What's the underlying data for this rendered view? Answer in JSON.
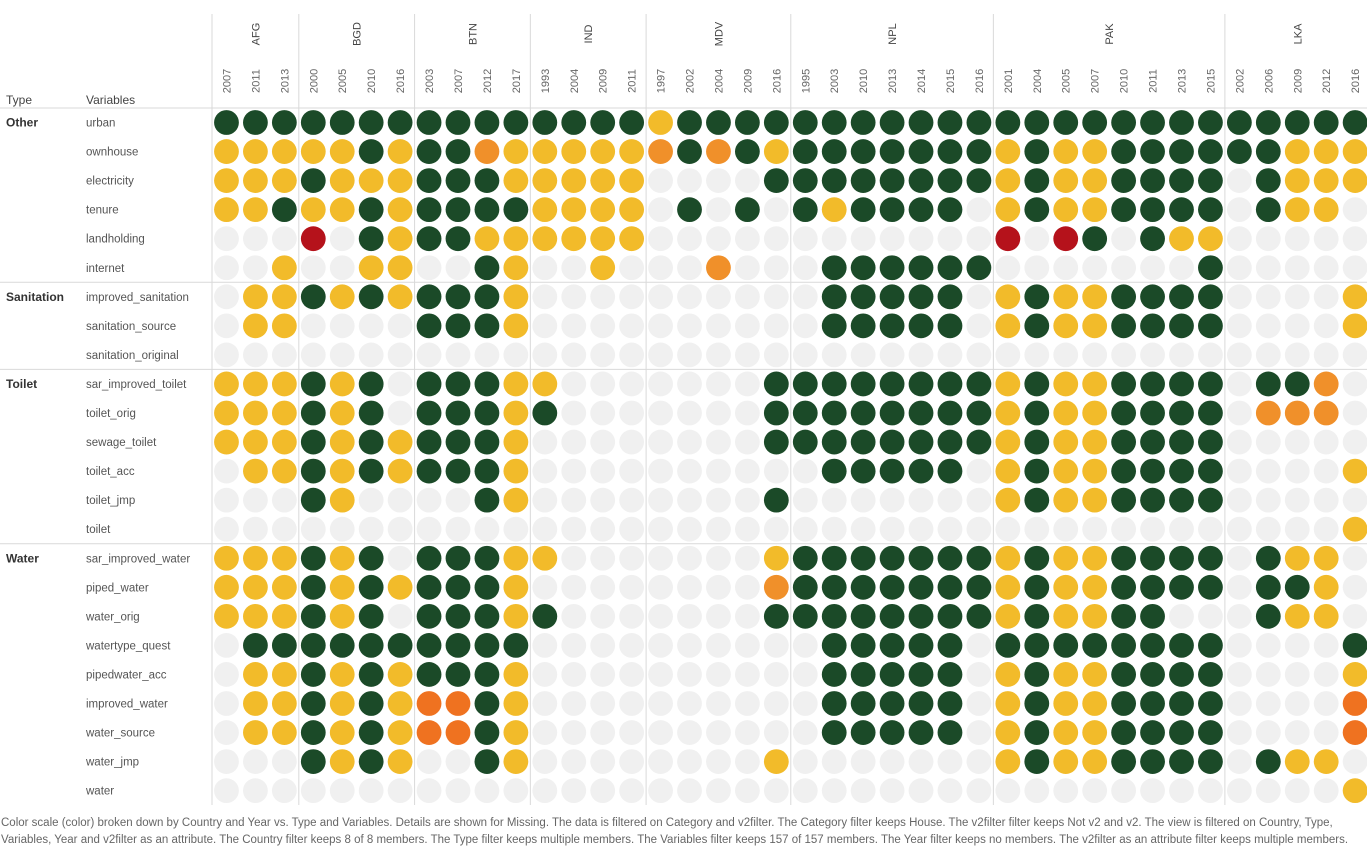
{
  "header": {
    "type_label": "Type",
    "variables_label": "Variables"
  },
  "caption": "Color scale (color) broken down by Country and Year vs. Type and Variables.  Details are shown for Missing. The data is filtered on Category and v2filter. The Category filter keeps House. The v2filter filter keeps Not v2 and v2. The view is filtered on Country, Type, Variables, Year and v2filter as an attribute. The Country filter keeps 8 of 8 members. The Type filter keeps multiple members. The Variables filter keeps 157 of 157 members. The Year filter keeps no members. The v2filter as an attribute filter keeps multiple members.",
  "colors": {
    "G": "#1b4a28",
    "Y": "#f2bb2a",
    "O": "#f0902a",
    "R": "#ef7220",
    "D": "#b5121b",
    "E": "#f0f0f0",
    "grid": "#d9d9d9",
    "text": "#555555"
  },
  "chart_data": {
    "type": "heatmap",
    "legend": {
      "G": "dark green",
      "Y": "yellow",
      "O": "light orange",
      "R": "orange",
      "D": "dark red",
      "E": "empty"
    },
    "countries": [
      {
        "name": "AFG",
        "years": [
          "2007",
          "2011",
          "2013"
        ]
      },
      {
        "name": "BGD",
        "years": [
          "2000",
          "2005",
          "2010",
          "2016"
        ]
      },
      {
        "name": "BTN",
        "years": [
          "2003",
          "2007",
          "2012",
          "2017"
        ]
      },
      {
        "name": "IND",
        "years": [
          "1993",
          "2004",
          "2009",
          "2011"
        ]
      },
      {
        "name": "MDV",
        "years": [
          "1997",
          "2002",
          "2004",
          "2009",
          "2016"
        ]
      },
      {
        "name": "NPL",
        "years": [
          "1995",
          "2003",
          "2010",
          "2013",
          "2014",
          "2015",
          "2016"
        ]
      },
      {
        "name": "PAK",
        "years": [
          "2001",
          "2004",
          "2005",
          "2007",
          "2010",
          "2011",
          "2013",
          "2015"
        ]
      },
      {
        "name": "LKA",
        "years": [
          "2002",
          "2006",
          "2009",
          "2012",
          "2016"
        ]
      }
    ],
    "groups": [
      {
        "type": "Other",
        "rows": [
          {
            "var": "urban",
            "cells": "GGG GGGG GGGG GGGG YGGGG GGGGGGG GGGGGGGG GGGGG"
          },
          {
            "var": "ownhouse",
            "cells": "YYY YYGY GGOY YYYY OGOGY GGGGGGG YGYYGGGG GGYYY"
          },
          {
            "var": "electricity",
            "cells": "YYY GYYY GGGY YYYY EEEEG GGGGGGG YGYYGGGG EGYYY"
          },
          {
            "var": "tenure",
            "cells": "YYG YYGY GGGG YYYY EGEGE GYGGGGE YGYYGGGG EGYYE"
          },
          {
            "var": "landholding",
            "cells": "EEE DEGY GGYY YYYY EEEEE EEEEEEE DEDGEGYY EEEEE"
          },
          {
            "var": "internet",
            "cells": "EEY EEYY EEGY EEYE EEOEE EGGGGGG EEEEEEEG EEEEE"
          }
        ]
      },
      {
        "type": "Sanitation",
        "rows": [
          {
            "var": "improved_sanitation",
            "cells": "EYY GYGY GGGY EEEE EEEEE EGGGGGE YGYYGGGG EEEEY"
          },
          {
            "var": "sanitation_source",
            "cells": "EYY EEEE GGGY EEEE EEEEE EGGGGGE YGYYGGGG EEEEY"
          },
          {
            "var": "sanitation_original",
            "cells": "EEE EEEE EEEE EEEE EEEEE EEEEEEE EEEEEEEE EEEEE"
          }
        ]
      },
      {
        "type": "Toilet",
        "rows": [
          {
            "var": "sar_improved_toilet",
            "cells": "YYY GYGE GGGY YEEE EEEEG GGGGGGG YGYYGGGG EGGOE"
          },
          {
            "var": "toilet_orig",
            "cells": "YYY GYGE GGGY GEEE EEEEG GGGGGGG YGYYGGGG EOOOE"
          },
          {
            "var": "sewage_toilet",
            "cells": "YYY GYGY GGGY EEEE EEEEG GGGGGGG YGYYGGGG EEEEE"
          },
          {
            "var": "toilet_acc",
            "cells": "EYY GYGY GGGY EEEE EEEEE EGGGGGE YGYYGGGG EEEEY"
          },
          {
            "var": "toilet_jmp",
            "cells": "EEE GYEE EEGY EEEE EEEEG EEEEEEE YGYYGGGG EEEEE"
          },
          {
            "var": "toilet",
            "cells": "EEE EEEE EEEE EEEE EEEEE EEEEEEE EEEEEEEE EEEEY"
          }
        ]
      },
      {
        "type": "Water",
        "rows": [
          {
            "var": "sar_improved_water",
            "cells": "YYY GYGE GGGY YEEE EEEEY GGGGGGG YGYYGGGG EGYYE"
          },
          {
            "var": "piped_water",
            "cells": "YYY GYGY GGGY EEEE EEEEO GGGGGGG YGYYGGGG EGGYE"
          },
          {
            "var": "water_orig",
            "cells": "YYY GYGE GGGY GEEE EEEEG GGGGGGG YGYYGGEE EGYYE"
          },
          {
            "var": "watertype_quest",
            "cells": "EGG GGGG GGGG EEEE EEEEE EGGGGGE GGGGGGGG EEEEG"
          },
          {
            "var": "pipedwater_acc",
            "cells": "EYY GYGY GGGY EEEE EEEEE EGGGGGE YGYYGGGG EEEEY"
          },
          {
            "var": "improved_water",
            "cells": "EYY GYGY RRGY EEEE EEEEE EGGGGGE YGYYGGGG EEEER"
          },
          {
            "var": "water_source",
            "cells": "EYY GYGY RRGY EEEE EEEEE EGGGGGE YGYYGGGG EEEER"
          },
          {
            "var": "water_jmp",
            "cells": "EEE GYGY EEGY EEEE EEEEY EEEEEEE YGYYGGGG EGYYE"
          },
          {
            "var": "water",
            "cells": "EEE EEEE EEEE EEEE EEEEE EEEEEEE EEEEEEEE EEEEY"
          }
        ]
      }
    ]
  }
}
